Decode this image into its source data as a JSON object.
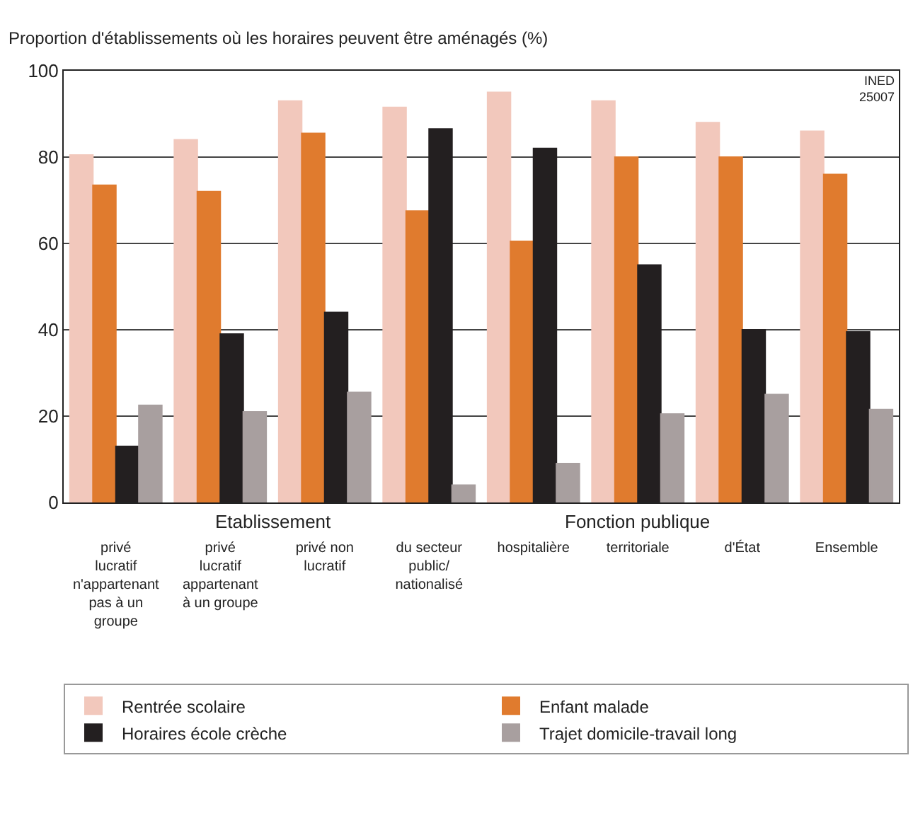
{
  "chart_data": {
    "type": "bar",
    "ylabel": "Proportion d'établissements où les horaires peuvent être aménagés (%)",
    "categories": [
      "privé lucratif n'appartenant pas à un groupe",
      "privé lucratif appartenant à un groupe",
      "privé non lucratif",
      "du secteur public/ nationalisé",
      "hospitalière",
      "territoriale",
      "d'État",
      "Ensemble"
    ],
    "series": [
      {
        "name": "Rentrée scolaire",
        "color": "#f2c8bc",
        "values": [
          80.5,
          84,
          93,
          91.5,
          95,
          93,
          88,
          86
        ]
      },
      {
        "name": "Enfant malade",
        "color": "#e07b2e",
        "values": [
          73.5,
          72,
          85.5,
          67.5,
          60.5,
          80,
          80,
          76
        ]
      },
      {
        "name": "Horaires école crèche",
        "color": "#231f20",
        "values": [
          13,
          39,
          44,
          86.5,
          82,
          55,
          40,
          39.5
        ]
      },
      {
        "name": "Trajet domicile-travail long",
        "color": "#a89f9f",
        "values": [
          22.5,
          21,
          25.5,
          4,
          9,
          20.5,
          25,
          21.5
        ]
      }
    ],
    "ylim": [
      0,
      100
    ],
    "yticks": [
      0,
      20,
      40,
      60,
      80,
      100
    ],
    "grid": "y",
    "legend": "bottom",
    "annotations": [
      "Etablissement",
      "Fonction publique",
      "INED 25007"
    ]
  }
}
